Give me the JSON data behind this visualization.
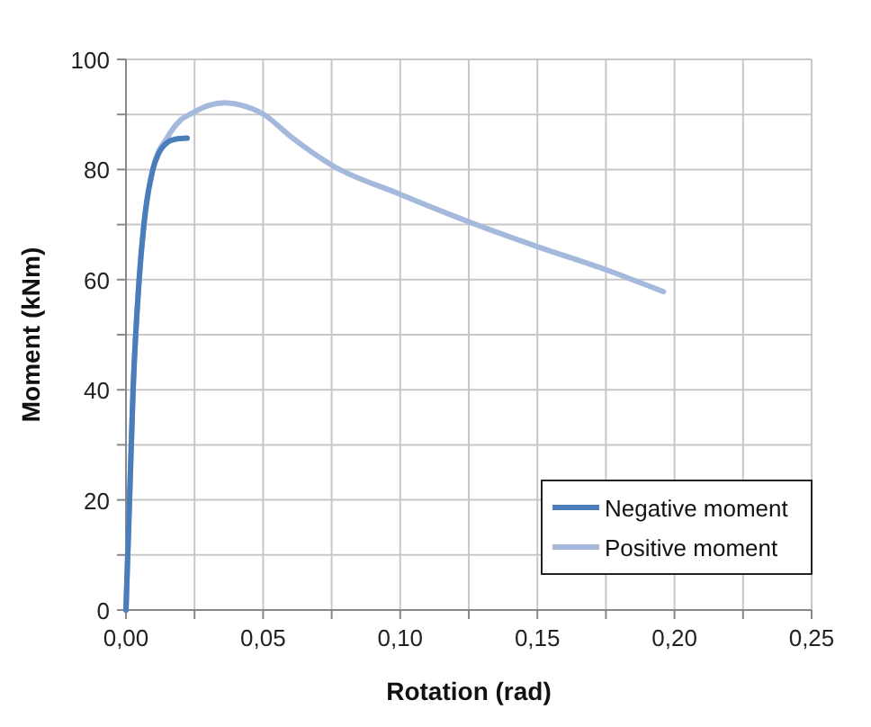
{
  "chart_data": {
    "type": "line",
    "xlabel": "Rotation (rad)",
    "ylabel": "Moment (kNm)",
    "xlim": [
      0,
      0.25
    ],
    "xticks": [
      {
        "value": 0,
        "label": "0,00"
      },
      {
        "value": 0.025,
        "label": null
      },
      {
        "value": 0.05,
        "label": "0,05"
      },
      {
        "value": 0.075,
        "label": null
      },
      {
        "value": 0.1,
        "label": "0,10"
      },
      {
        "value": 0.125,
        "label": null
      },
      {
        "value": 0.15,
        "label": "0,15"
      },
      {
        "value": 0.175,
        "label": null
      },
      {
        "value": 0.2,
        "label": "0,20"
      },
      {
        "value": 0.225,
        "label": null
      },
      {
        "value": 0.25,
        "label": "0,25"
      }
    ],
    "ylim": [
      0,
      100
    ],
    "yticks": [
      0,
      {
        "value": 10,
        "label": null
      },
      20,
      {
        "value": 30,
        "label": null
      },
      40,
      {
        "value": 50,
        "label": null
      },
      60,
      {
        "value": 70,
        "label": null
      },
      80,
      {
        "value": 90,
        "label": null
      },
      100
    ],
    "grid": true,
    "legend": "bottom right",
    "line_style": "solid",
    "marker": "none",
    "series": [
      {
        "name": "Negative moment",
        "color": "#4a7ebb",
        "x": [
          0,
          0.0013,
          0.0026,
          0.0048,
          0.007,
          0.0098,
          0.012,
          0.0153,
          0.018,
          0.0223
        ],
        "values": [
          0,
          20,
          40,
          60,
          72,
          80,
          83,
          85,
          85.5,
          85.7
        ]
      },
      {
        "name": "Positive moment",
        "color": "#a5b9dc",
        "x": [
          0,
          0.0013,
          0.0026,
          0.0048,
          0.007,
          0.0098,
          0.0153,
          0.02,
          0.024,
          0.03,
          0.036,
          0.042,
          0.0503,
          0.06,
          0.075,
          0.1,
          0.125,
          0.15,
          0.175,
          0.196
        ],
        "values": [
          0,
          20,
          40,
          60,
          72,
          80,
          86,
          89,
          90.2,
          91.6,
          92.1,
          91.7,
          90,
          86,
          80.8,
          75.5,
          70.5,
          66,
          61.8,
          57.8
        ]
      }
    ]
  }
}
